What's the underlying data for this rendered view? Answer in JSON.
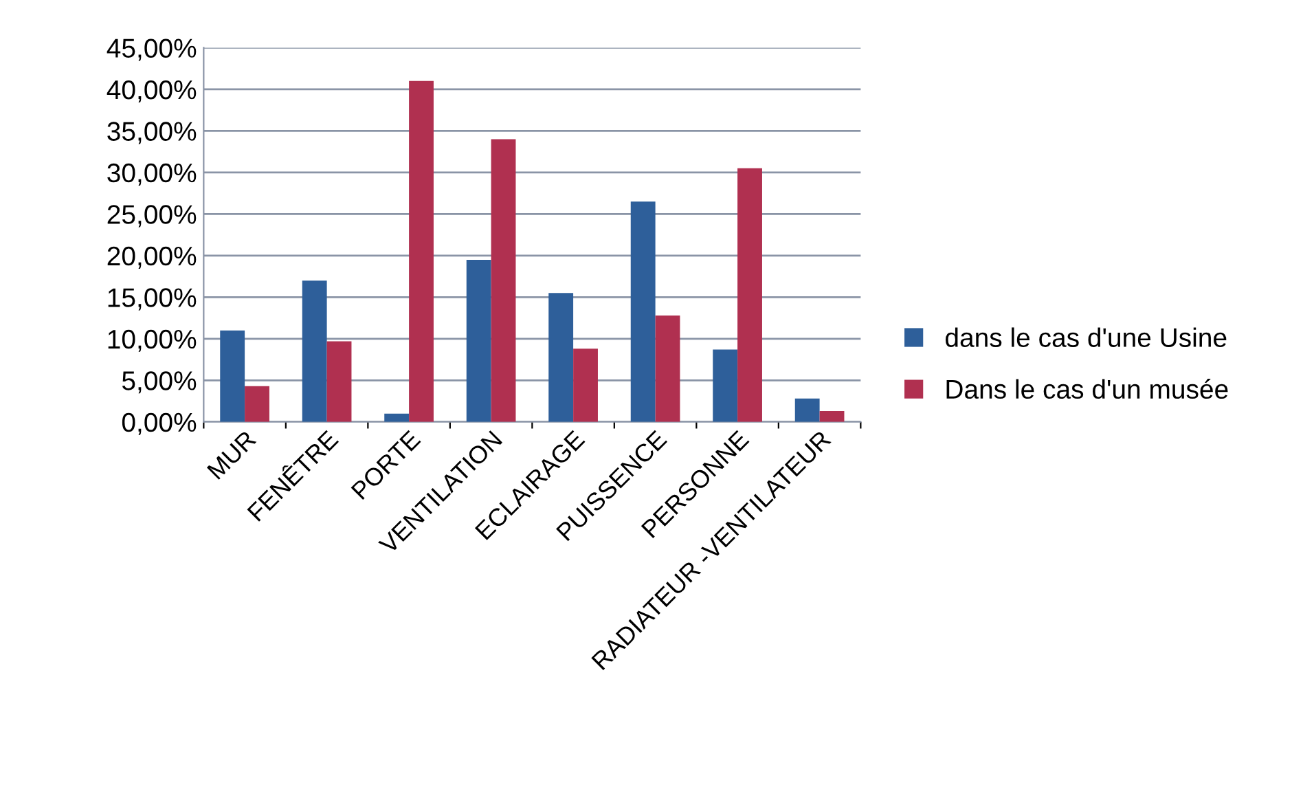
{
  "chart_data": {
    "type": "bar",
    "categories": [
      "MUR",
      "FENÊTRE",
      "PORTE",
      "VENTILATION",
      "ECLAIRAGE",
      "PUISSENCE",
      "PERSONNE",
      "RADIATEUR -VENTILATEUR"
    ],
    "series": [
      {
        "name": "dans le cas d'une Usine",
        "color": "#2e5f9a",
        "values": [
          11.0,
          17.0,
          1.0,
          19.5,
          15.5,
          26.5,
          8.7,
          2.8
        ]
      },
      {
        "name": "Dans le cas d'un musée",
        "color": "#b03050",
        "values": [
          4.3,
          9.7,
          41.0,
          34.0,
          8.8,
          12.8,
          30.5,
          1.3
        ]
      }
    ],
    "ylim": [
      0,
      45
    ],
    "yticks": [
      {
        "value": 0,
        "label": "0,00%"
      },
      {
        "value": 5,
        "label": "5,00%"
      },
      {
        "value": 10,
        "label": "10,00%"
      },
      {
        "value": 15,
        "label": "15,00%"
      },
      {
        "value": 20,
        "label": "20,00%"
      },
      {
        "value": 25,
        "label": "25,00%"
      },
      {
        "value": 30,
        "label": "30,00%"
      },
      {
        "value": 35,
        "label": "35,00%"
      },
      {
        "value": 40,
        "label": "40,00%"
      },
      {
        "value": 45,
        "label": "45,00%"
      }
    ],
    "grid": "y",
    "legend": "right"
  }
}
